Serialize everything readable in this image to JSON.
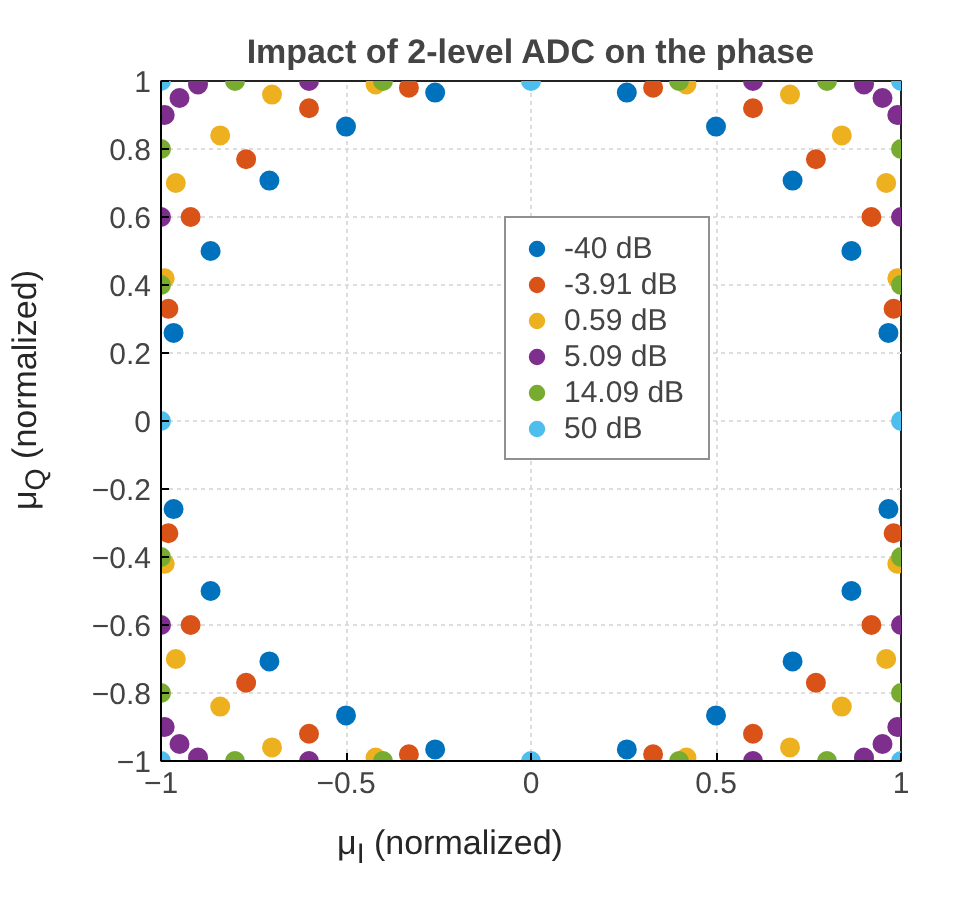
{
  "chart_data": {
    "type": "scatter",
    "title": "Impact of 2-level ADC on the phase",
    "xlabel": "μ$_{I}$ (normalized)",
    "ylabel": "μ$_{Q}$ (normalized)",
    "xlim": [
      -1,
      1
    ],
    "ylim": [
      -1,
      1
    ],
    "xticks": [
      -1,
      -0.5,
      0,
      0.5,
      1
    ],
    "yticks": [
      -1,
      -0.8,
      -0.6,
      -0.4,
      -0.2,
      0,
      0.2,
      0.4,
      0.6,
      0.8,
      1
    ],
    "grid": true,
    "legend": "right",
    "marker": "circle",
    "series": [
      {
        "name": "-40 dB",
        "color": "#0072bd",
        "x": [
          0.966,
          0.866,
          0.707,
          0.5,
          0.259,
          -0.259,
          -0.5,
          -0.707,
          -0.866,
          -0.966,
          -0.966,
          -0.866,
          -0.707,
          -0.5,
          -0.259,
          0.259,
          0.5,
          0.707,
          0.866,
          0.966
        ],
        "values": [
          0.259,
          0.5,
          0.707,
          0.866,
          0.966,
          0.966,
          0.866,
          0.707,
          0.5,
          0.259,
          -0.259,
          -0.5,
          -0.707,
          -0.866,
          -0.966,
          -0.966,
          -0.866,
          -0.707,
          -0.5,
          -0.259
        ]
      },
      {
        "name": "-3.91 dB",
        "color": "#d95319",
        "x": [
          0.98,
          0.92,
          0.77,
          0.6,
          0.33,
          -0.33,
          -0.6,
          -0.77,
          -0.92,
          -0.98,
          -0.98,
          -0.92,
          -0.77,
          -0.6,
          -0.33,
          0.33,
          0.6,
          0.77,
          0.92,
          0.98
        ],
        "values": [
          0.33,
          0.6,
          0.77,
          0.92,
          0.98,
          0.98,
          0.92,
          0.77,
          0.6,
          0.33,
          -0.33,
          -0.6,
          -0.77,
          -0.92,
          -0.98,
          -0.98,
          -0.92,
          -0.77,
          -0.6,
          -0.33
        ]
      },
      {
        "name": "0.59 dB",
        "color": "#edb120",
        "x": [
          0.99,
          0.96,
          0.84,
          0.7,
          0.42,
          -0.42,
          -0.7,
          -0.84,
          -0.96,
          -0.99,
          -0.99,
          -0.96,
          -0.84,
          -0.7,
          -0.42,
          0.42,
          0.7,
          0.84,
          0.96,
          0.99
        ],
        "values": [
          0.42,
          0.7,
          0.84,
          0.96,
          0.99,
          0.99,
          0.96,
          0.84,
          0.7,
          0.42,
          -0.42,
          -0.7,
          -0.84,
          -0.96,
          -0.99,
          -0.99,
          -0.96,
          -0.84,
          -0.7,
          -0.42
        ]
      },
      {
        "name": "5.09 dB",
        "color": "#7e2f8e",
        "x": [
          1,
          0.99,
          0.95,
          0.9,
          0.6,
          -0.6,
          -0.9,
          -0.95,
          -0.99,
          -1,
          -1,
          -0.99,
          -0.95,
          -0.9,
          -0.6,
          0.6,
          0.9,
          0.95,
          0.99,
          1
        ],
        "values": [
          0.6,
          0.9,
          0.95,
          0.99,
          1,
          1,
          0.99,
          0.95,
          0.9,
          0.6,
          -0.6,
          -0.9,
          -0.95,
          -0.99,
          -1,
          -1,
          -0.99,
          -0.95,
          -0.9,
          -0.6
        ]
      },
      {
        "name": "14.09 dB",
        "color": "#77ac30",
        "x": [
          1,
          1,
          0.8,
          0.4,
          -0.4,
          -0.8,
          -1,
          -1,
          -1,
          -1,
          -0.8,
          -0.4,
          0.4,
          0.8,
          1,
          1
        ],
        "values": [
          0.4,
          0.8,
          1,
          1,
          1,
          1,
          0.8,
          0.4,
          -0.4,
          -0.8,
          -1,
          -1,
          -1,
          -1,
          -0.8,
          -0.4
        ]
      },
      {
        "name": "50 dB",
        "color": "#4dbeee",
        "x": [
          1,
          1,
          0,
          -1,
          -1,
          -1,
          0,
          1
        ],
        "values": [
          0,
          1,
          1,
          1,
          0,
          -1,
          -1,
          -1
        ]
      }
    ]
  }
}
